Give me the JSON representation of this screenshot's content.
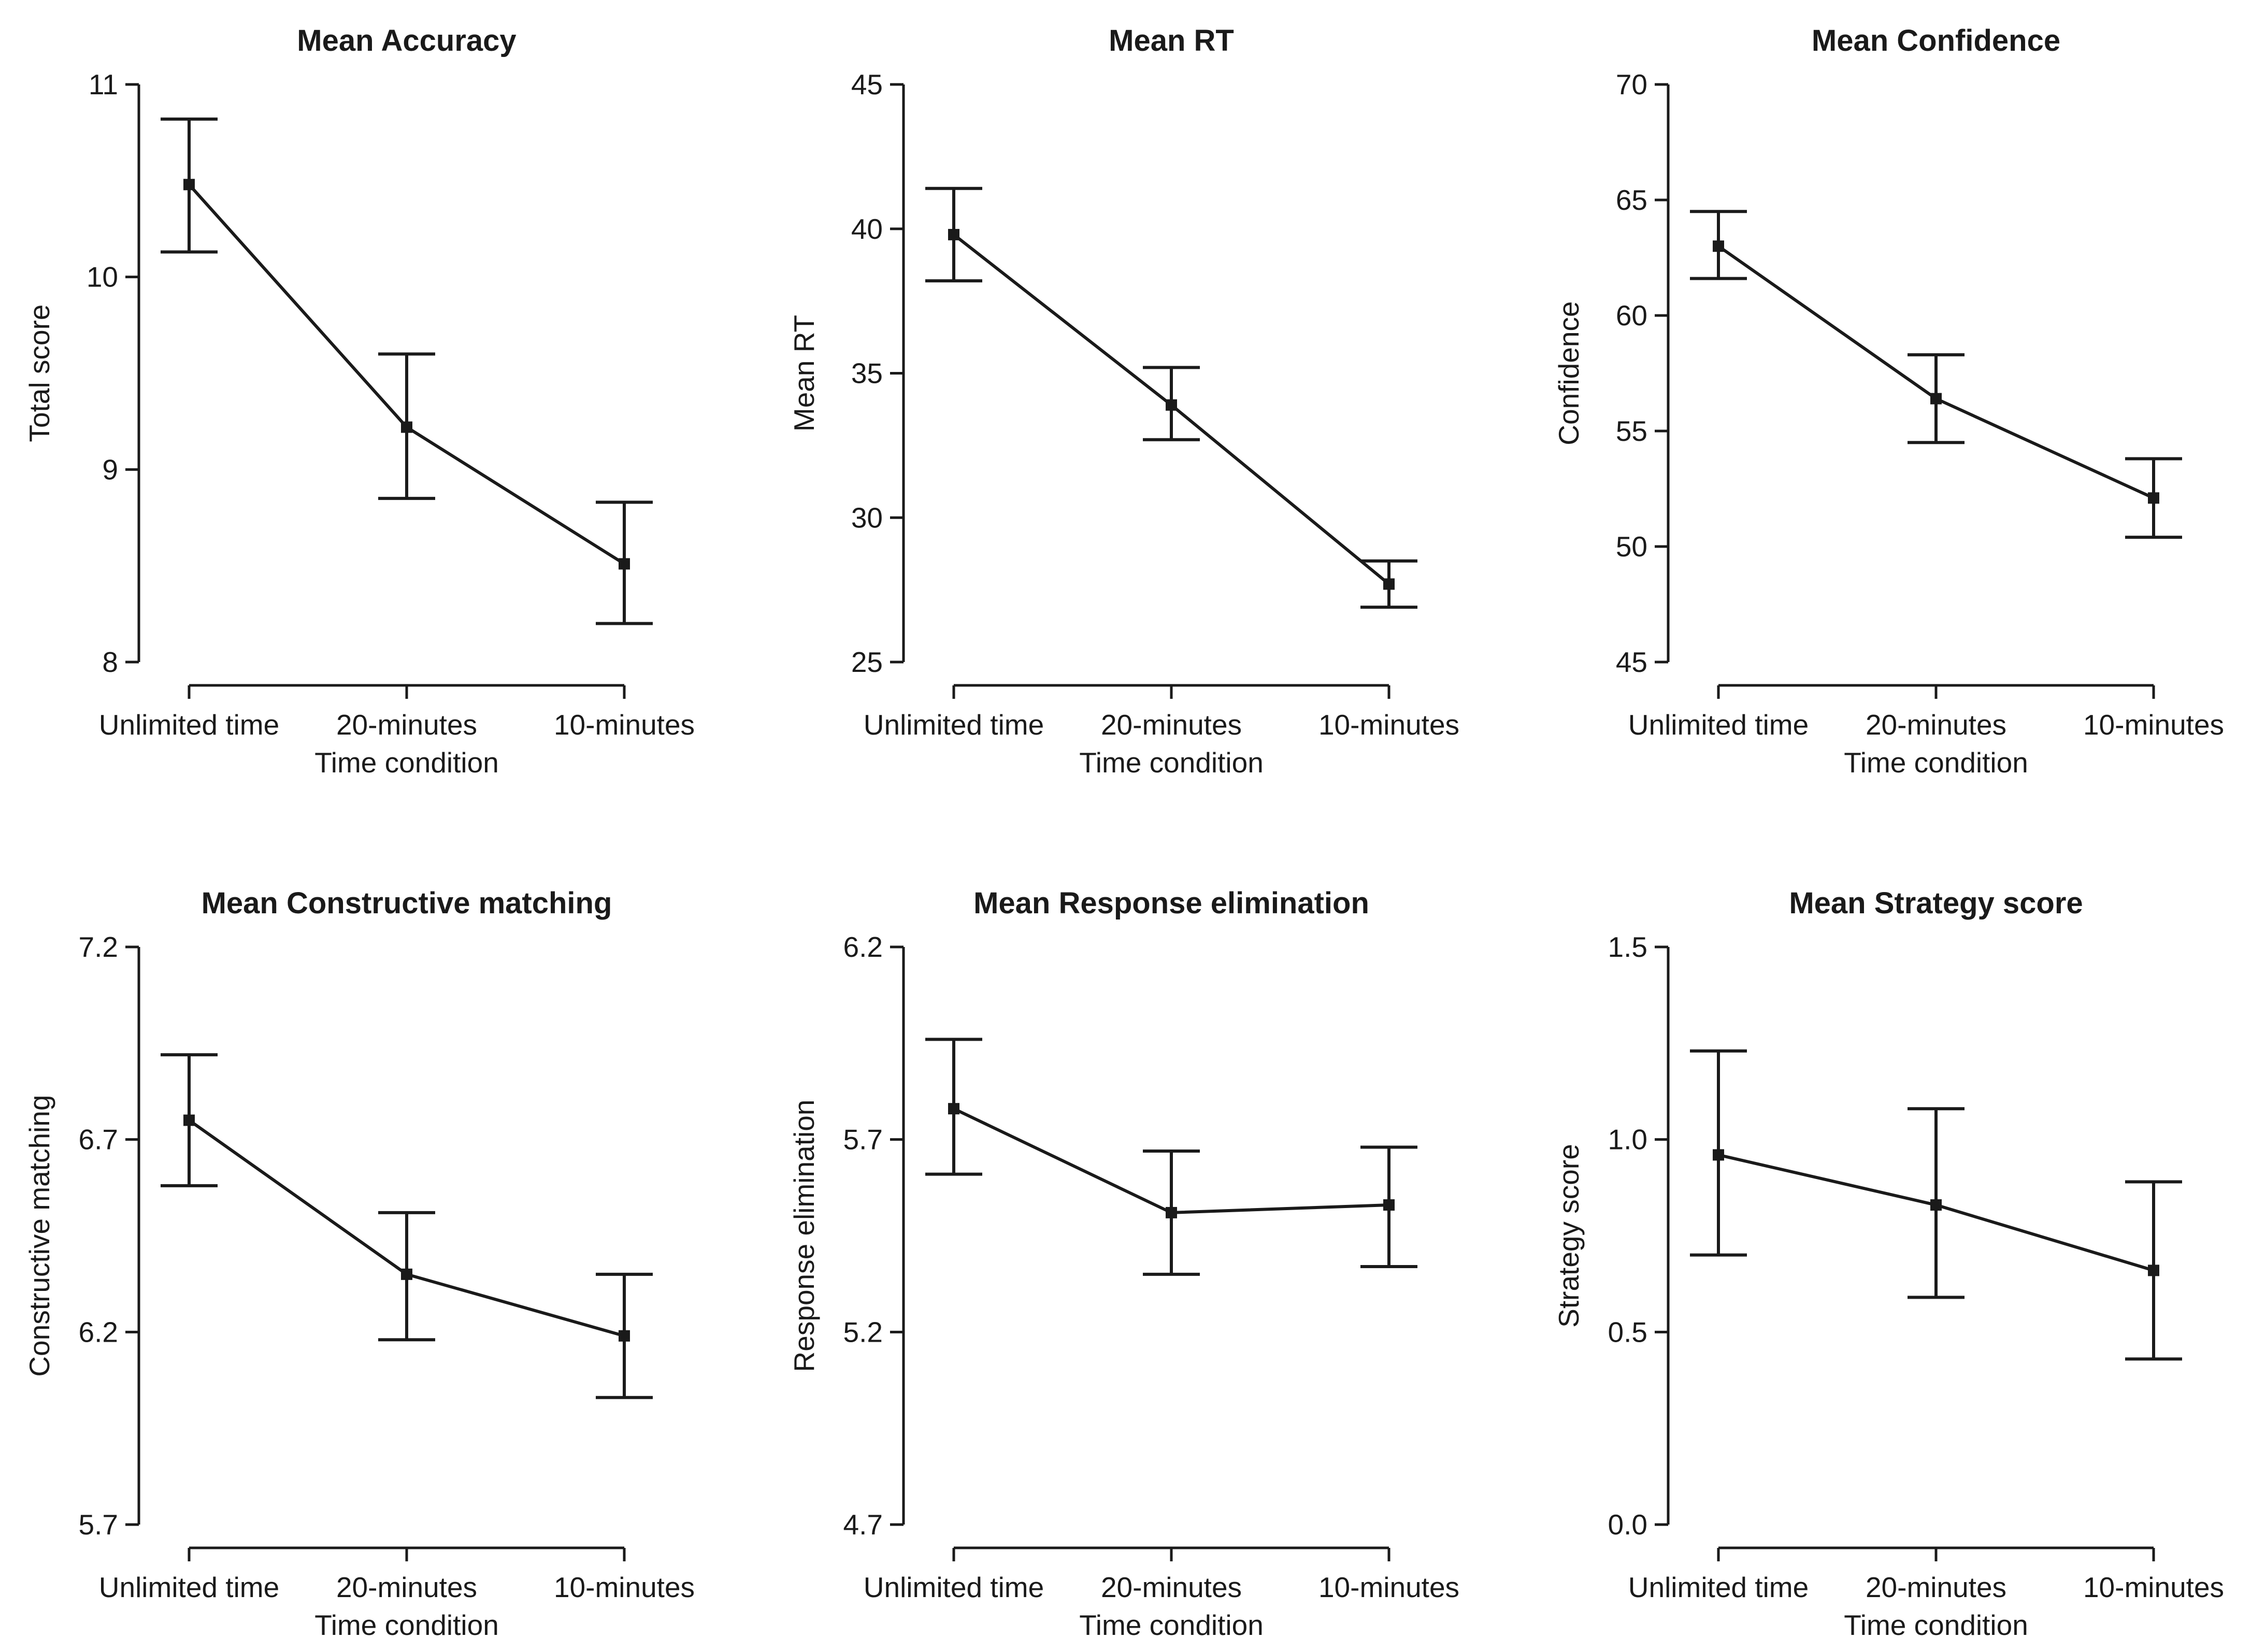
{
  "chart_data": [
    {
      "type": "line",
      "title": "Mean Accuracy",
      "xlabel": "Time condition",
      "ylabel": "Total score",
      "categories": [
        "Unlimited time",
        "20-minutes",
        "10-minutes"
      ],
      "values": [
        10.48,
        9.22,
        8.51
      ],
      "err_low": [
        10.13,
        8.85,
        8.2
      ],
      "err_high": [
        10.82,
        9.6,
        8.83
      ],
      "ylim": [
        8,
        11
      ],
      "yticks": [
        8,
        9,
        10,
        11
      ],
      "ytick_labels": [
        "8",
        "9",
        "10",
        "11"
      ]
    },
    {
      "type": "line",
      "title": "Mean RT",
      "xlabel": "Time condition",
      "ylabel": "Mean RT",
      "categories": [
        "Unlimited time",
        "20-minutes",
        "10-minutes"
      ],
      "values": [
        39.8,
        33.9,
        27.7
      ],
      "err_low": [
        38.2,
        32.7,
        26.9
      ],
      "err_high": [
        41.4,
        35.2,
        28.5
      ],
      "ylim": [
        25,
        45
      ],
      "yticks": [
        25,
        30,
        35,
        40,
        45
      ],
      "ytick_labels": [
        "25",
        "30",
        "35",
        "40",
        "45"
      ]
    },
    {
      "type": "line",
      "title": "Mean Confidence",
      "xlabel": "Time condition",
      "ylabel": "Confidence",
      "categories": [
        "Unlimited time",
        "20-minutes",
        "10-minutes"
      ],
      "values": [
        63.0,
        56.4,
        52.1
      ],
      "err_low": [
        61.6,
        54.5,
        50.4
      ],
      "err_high": [
        64.5,
        58.3,
        53.8
      ],
      "ylim": [
        45,
        70
      ],
      "yticks": [
        45,
        50,
        55,
        60,
        65,
        70
      ],
      "ytick_labels": [
        "45",
        "50",
        "55",
        "60",
        "65",
        "70"
      ]
    },
    {
      "type": "line",
      "title": "Mean Constructive matching",
      "xlabel": "Time condition",
      "ylabel": "Constructive matching",
      "categories": [
        "Unlimited time",
        "20-minutes",
        "10-minutes"
      ],
      "values": [
        6.75,
        6.35,
        6.19
      ],
      "err_low": [
        6.58,
        6.18,
        6.03
      ],
      "err_high": [
        6.92,
        6.51,
        6.35
      ],
      "ylim": [
        5.7,
        7.2
      ],
      "yticks": [
        5.7,
        6.2,
        6.7,
        7.2
      ],
      "ytick_labels": [
        "5.7",
        "6.2",
        "6.7",
        "7.2"
      ]
    },
    {
      "type": "line",
      "title": "Mean Response elimination",
      "xlabel": "Time condition",
      "ylabel": "Response elimination",
      "categories": [
        "Unlimited time",
        "20-minutes",
        "10-minutes"
      ],
      "values": [
        5.78,
        5.51,
        5.53
      ],
      "err_low": [
        5.61,
        5.35,
        5.37
      ],
      "err_high": [
        5.96,
        5.67,
        5.68
      ],
      "ylim": [
        4.7,
        6.2
      ],
      "yticks": [
        4.7,
        5.2,
        5.7,
        6.2
      ],
      "ytick_labels": [
        "4.7",
        "5.2",
        "5.7",
        "6.2"
      ]
    },
    {
      "type": "line",
      "title": "Mean Strategy score",
      "xlabel": "Time condition",
      "ylabel": "Strategy score",
      "categories": [
        "Unlimited time",
        "20-minutes",
        "10-minutes"
      ],
      "values": [
        0.96,
        0.83,
        0.66
      ],
      "err_low": [
        0.7,
        0.59,
        0.43
      ],
      "err_high": [
        1.23,
        1.08,
        0.89
      ],
      "ylim": [
        0,
        1.5
      ],
      "yticks": [
        0,
        0.5,
        1.0,
        1.5
      ],
      "ytick_labels": [
        "0.0",
        "0.5",
        "1.0",
        "1.5"
      ]
    }
  ]
}
